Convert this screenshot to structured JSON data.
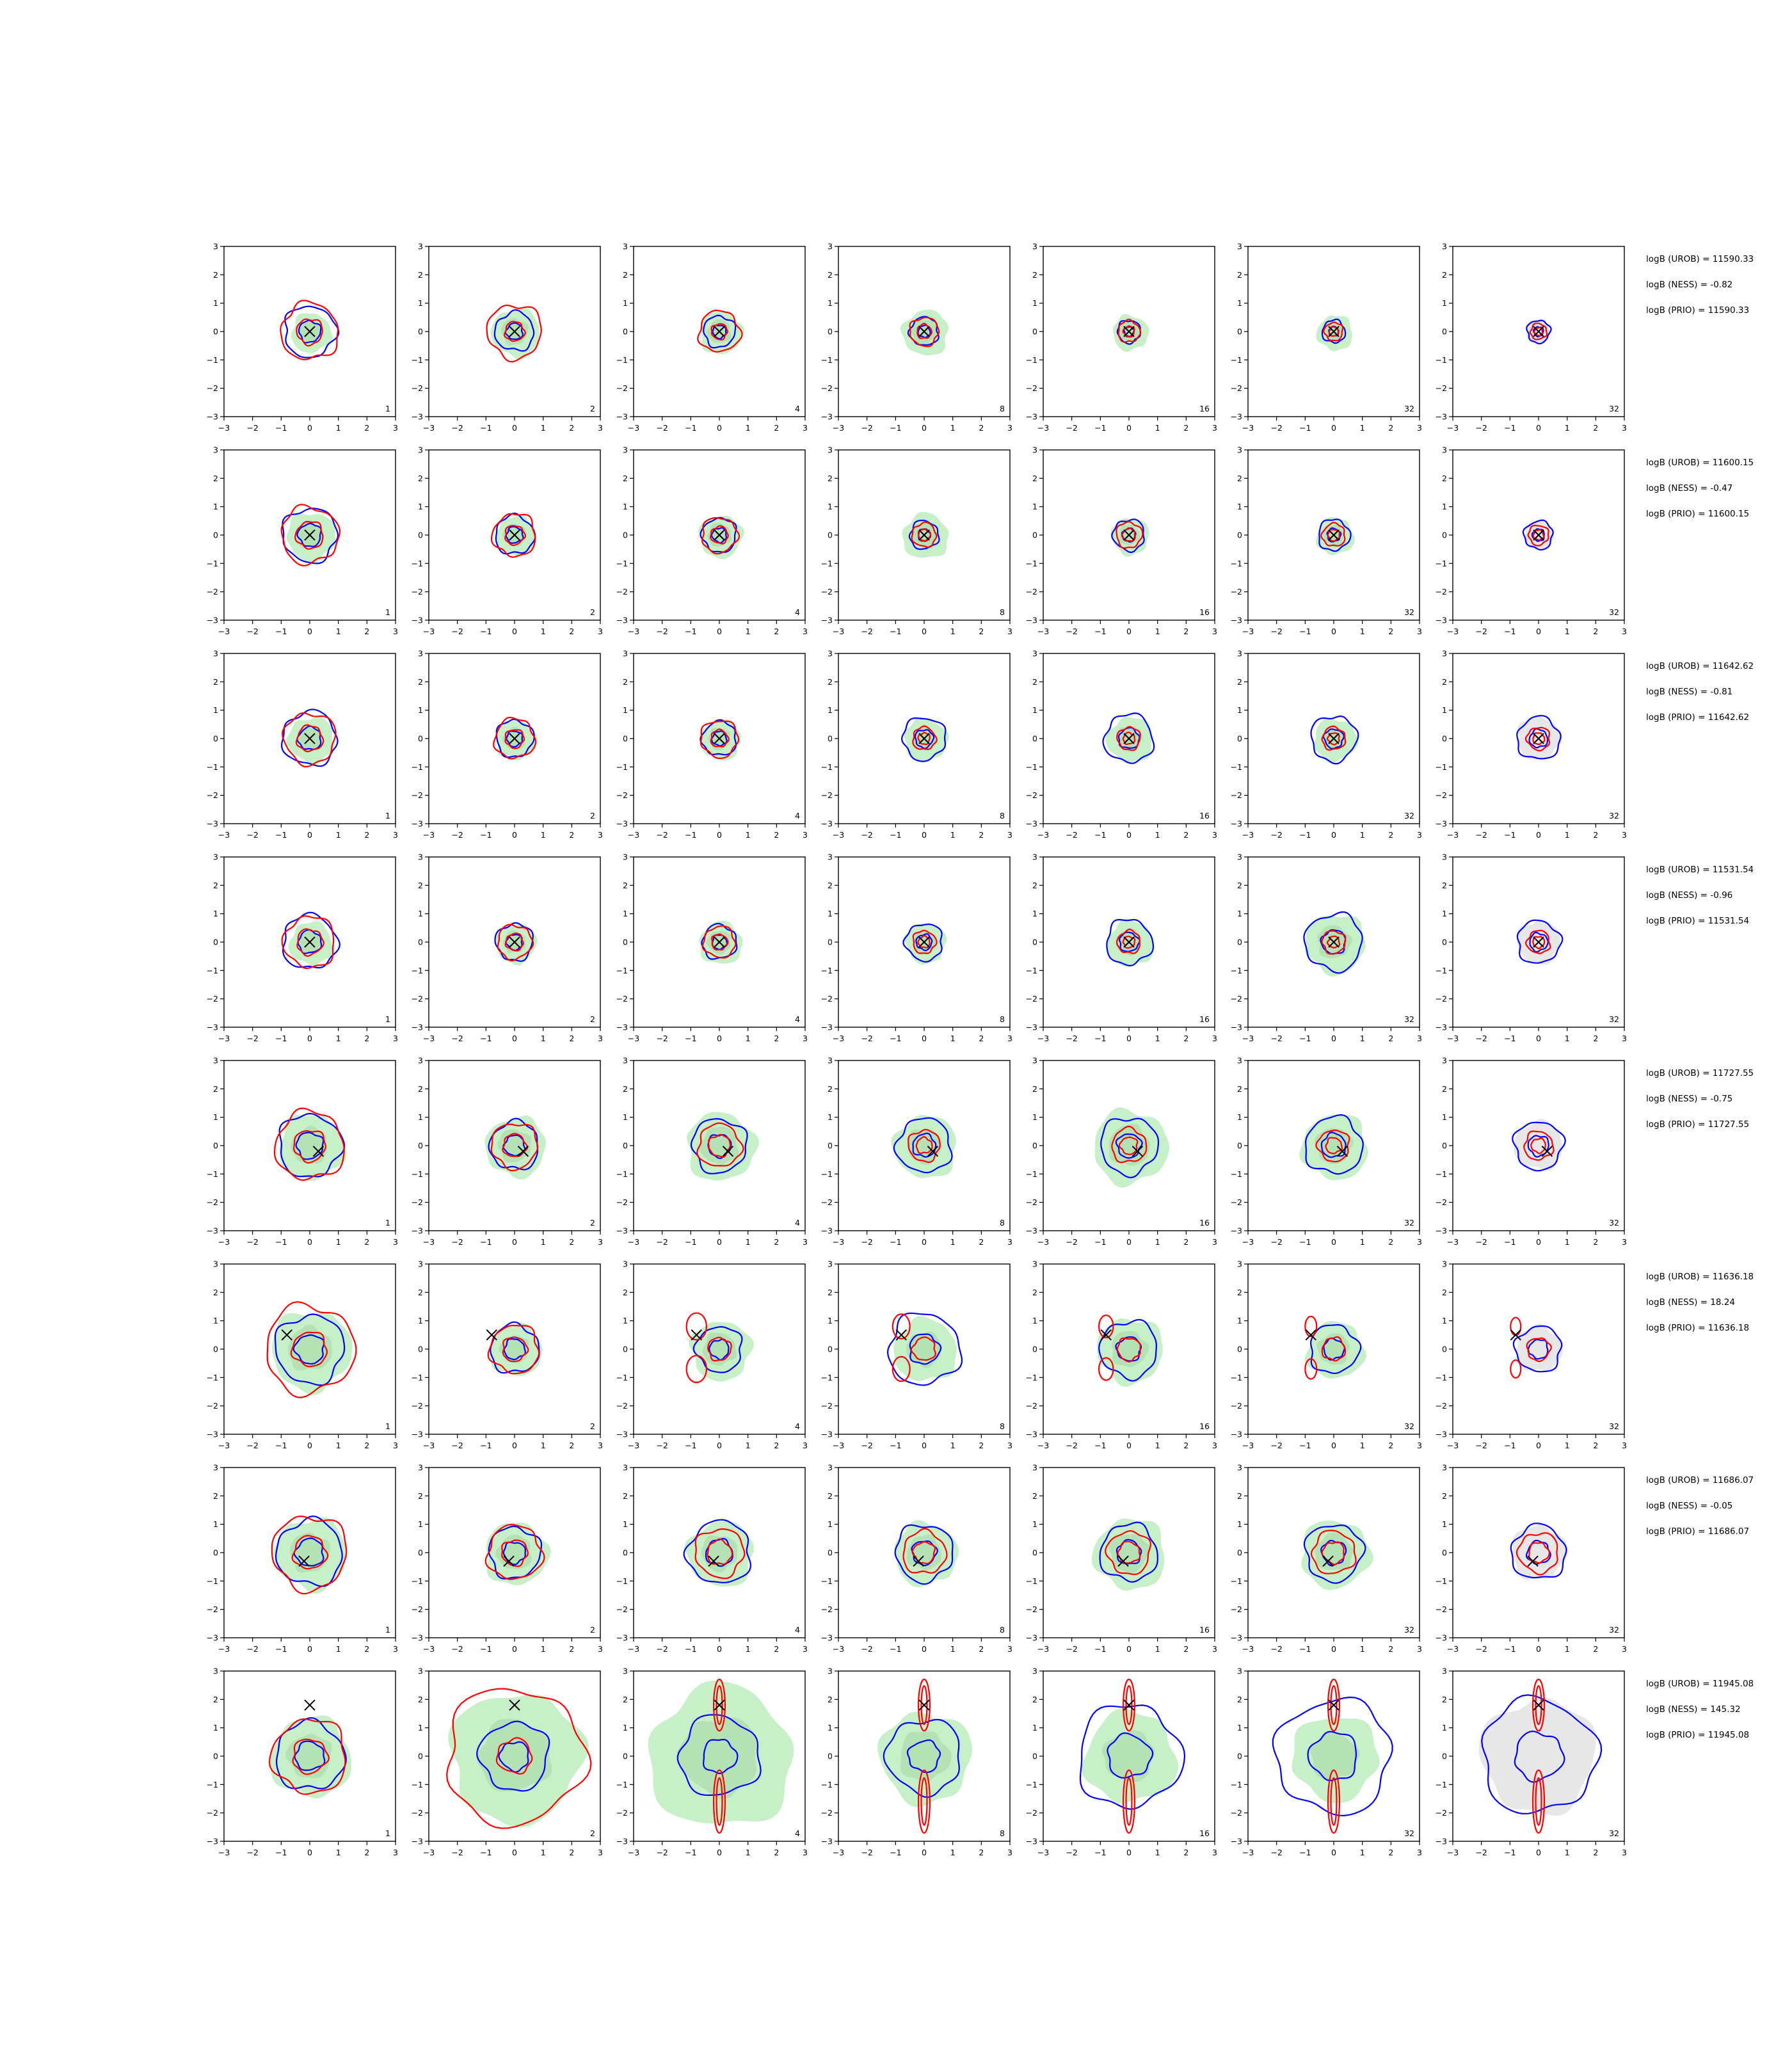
{
  "chart_data": {
    "type": "contour-grid",
    "layout": {
      "rows": 8,
      "cols": 7
    },
    "axes": {
      "xlim": [
        -3,
        3
      ],
      "ylim": [
        -3,
        3
      ],
      "xticks": [
        -3,
        -2,
        -1,
        0,
        1,
        2,
        3
      ],
      "yticks": [
        -3,
        -2,
        -1,
        0,
        1,
        2,
        3
      ]
    },
    "tick_labels": [
      "−3",
      "−2",
      "−1",
      "0",
      "1",
      "2",
      "3"
    ],
    "column_labels": [
      "1",
      "2",
      "4",
      "8",
      "16",
      "32",
      "32"
    ],
    "series_colors": {
      "blue": "#0000ff",
      "red": "#ff0000",
      "green": "#c8f0c8",
      "gray": "#d3d3d3",
      "marker": "#000000"
    },
    "rows": [
      {
        "marker": [
          0.0,
          0.0
        ],
        "blue": [
          0.9,
          0.68,
          0.55,
          0.5,
          0.4,
          0.4,
          0.4
        ],
        "red": [
          1.0,
          0.95,
          0.72,
          0.5,
          0.38,
          0.32,
          0.28
        ],
        "green": [
          0.7,
          0.85,
          0.75,
          0.8,
          0.62,
          0.62,
          0.0
        ],
        "annotations": [
          "logB (UROB) = 11590.33",
          "logB (NESS) = -0.82",
          "logB (PRIO) = 11590.33"
        ]
      },
      {
        "marker": [
          0.0,
          0.0
        ],
        "blue": [
          0.95,
          0.68,
          0.6,
          0.5,
          0.55,
          0.55,
          0.5
        ],
        "red": [
          1.0,
          0.75,
          0.62,
          0.42,
          0.45,
          0.4,
          0.35
        ],
        "green": [
          0.85,
          0.7,
          0.75,
          0.8,
          0.65,
          0.65,
          0.0
        ],
        "annotations": [
          "logB (UROB) = 11600.15",
          "logB (NESS) = -0.47",
          "logB (PRIO) = 11600.15"
        ]
      },
      {
        "marker": [
          0.0,
          0.0
        ],
        "blue": [
          0.95,
          0.65,
          0.6,
          0.75,
          0.85,
          0.8,
          0.75
        ],
        "red": [
          0.9,
          0.7,
          0.65,
          0.4,
          0.4,
          0.4,
          0.4
        ],
        "green": [
          0.8,
          0.7,
          0.7,
          0.75,
          0.8,
          0.75,
          0.0
        ],
        "annotations": [
          "logB (UROB) = 11642.62",
          "logB (NESS) = -0.81",
          "logB (PRIO) = 11642.62"
        ]
      },
      {
        "marker": [
          0.0,
          0.0
        ],
        "blue": [
          0.95,
          0.65,
          0.6,
          0.65,
          0.8,
          1.0,
          0.75
        ],
        "red": [
          0.9,
          0.6,
          0.55,
          0.4,
          0.4,
          0.4,
          0.4
        ],
        "green": [
          0.75,
          0.7,
          0.75,
          0.7,
          0.8,
          1.05,
          0.0
        ],
        "annotations": [
          "logB (UROB) = 11531.54",
          "logB (NESS) = -0.96",
          "logB (PRIO) = 11531.54"
        ]
      },
      {
        "marker": [
          0.3,
          -0.2
        ],
        "blue": [
          1.1,
          0.85,
          0.95,
          0.95,
          1.0,
          1.0,
          0.85
        ],
        "red": [
          1.2,
          0.8,
          0.75,
          0.55,
          0.6,
          0.55,
          0.5
        ],
        "green": [
          1.15,
          1.05,
          1.2,
          1.1,
          1.3,
          1.15,
          0.0
        ],
        "annotations": [
          "logB (UROB) = 11727.55",
          "logB (NESS) = -0.75",
          "logB (PRIO) = 11727.55"
        ]
      },
      {
        "marker": [
          -0.8,
          0.5
        ],
        "blue": [
          1.2,
          0.85,
          0.8,
          1.25,
          1.0,
          0.85,
          0.8
        ],
        "red": [
          1.55,
          0.85,
          1.6,
          1.5,
          1.45,
          1.4,
          1.35
        ],
        "green": [
          1.4,
          0.9,
          1.05,
          1.1,
          1.15,
          1.0,
          0.0
        ],
        "annotations": [
          "logB (UROB) = 11636.18",
          "logB (NESS) = 18.24",
          "logB (PRIO) = 11636.18"
        ]
      },
      {
        "marker": [
          -0.2,
          -0.3
        ],
        "blue": [
          1.15,
          0.9,
          1.1,
          1.0,
          1.0,
          1.0,
          0.95
        ],
        "red": [
          1.3,
          0.95,
          0.85,
          0.75,
          0.75,
          0.75,
          0.7
        ],
        "green": [
          1.25,
          1.1,
          1.15,
          1.1,
          1.25,
          1.2,
          0.0
        ],
        "annotations": [
          "logB (UROB) = 11686.07",
          "logB (NESS) = -0.05",
          "logB (PRIO) = 11686.07"
        ]
      },
      {
        "marker": [
          0.0,
          1.8
        ],
        "blue": [
          1.2,
          1.2,
          1.4,
          1.3,
          1.8,
          2.0,
          2.0
        ],
        "red": [
          1.3,
          2.4,
          3.4,
          3.4,
          3.4,
          3.4,
          3.4
        ],
        "green": [
          1.4,
          2.3,
          2.5,
          1.6,
          1.6,
          1.5,
          0.0
        ],
        "annotations": [
          "logB (UROB) = 11945.08",
          "logB (NESS) = 145.32",
          "logB (PRIO) = 11945.08"
        ]
      }
    ]
  }
}
